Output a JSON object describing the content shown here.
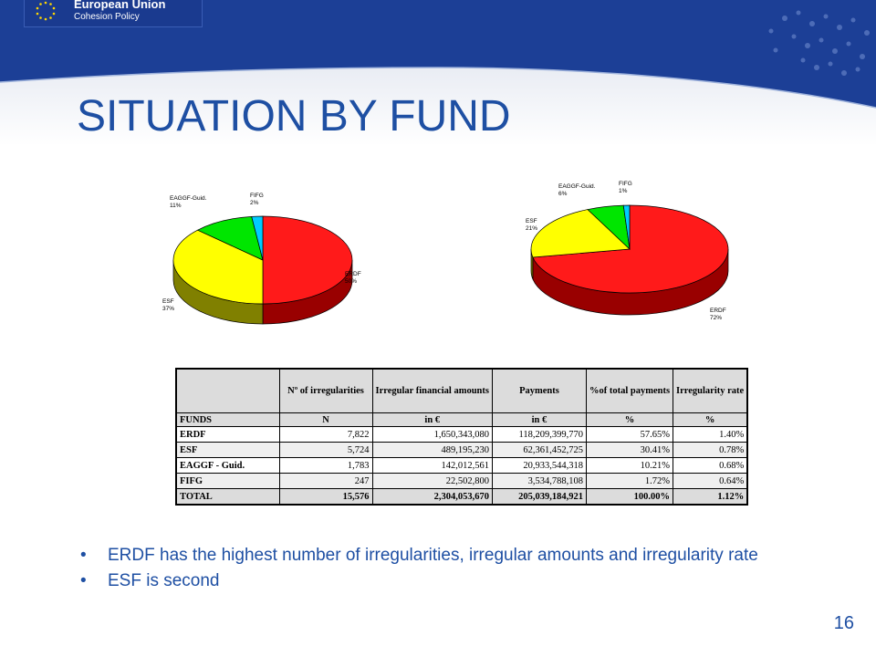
{
  "header": {
    "org": "European Union",
    "program": "Cohesion Policy"
  },
  "slide": {
    "title": "SITUATION BY FUND",
    "page_number": "16"
  },
  "bullets": [
    "ERDF has the highest number of irregularities, irregular amounts and irregularity rate",
    "ESF is second"
  ],
  "table": {
    "headers": [
      "",
      "Nº of irregularities",
      "Irregular financial amounts",
      "Payments",
      "%of total payments",
      "Irregularity rate"
    ],
    "units": [
      "FUNDS",
      "N",
      "in €",
      "in €",
      "%",
      "%"
    ],
    "rows": [
      [
        "ERDF",
        "7,822",
        "1,650,343,080",
        "118,209,399,770",
        "57.65%",
        "1.40%"
      ],
      [
        "ESF",
        "5,724",
        "489,195,230",
        "62,361,452,725",
        "30.41%",
        "0.78%"
      ],
      [
        "EAGGF - Guid.",
        "1,783",
        "142,012,561",
        "20,933,544,318",
        "10.21%",
        "0.68%"
      ],
      [
        "FIFG",
        "247",
        "22,502,800",
        "3,534,788,108",
        "1.72%",
        "0.64%"
      ]
    ],
    "total": [
      "TOTAL",
      "15,576",
      "2,304,053,670",
      "205,039,184,921",
      "100.00%",
      "1.12%"
    ]
  },
  "colors": {
    "title_blue": "#1e4fa3",
    "ERDF": "#ff1a1a",
    "ESF": "#ffff00",
    "EAGGF": "#00e600",
    "FIFG": "#00ccff"
  },
  "chart_data": [
    {
      "type": "pie",
      "categories": [
        "ERDF",
        "ESF",
        "EAGGF - Guid.",
        "FIFG"
      ],
      "labels": [
        "ERDF",
        "ESF",
        "EAGGF-Guid.",
        "FIFG"
      ],
      "label_values": [
        "50%",
        "37%",
        "11%",
        "2%"
      ],
      "values": [
        50,
        37,
        11,
        2
      ],
      "colors": [
        "#ff1a1a",
        "#ffff00",
        "#00e600",
        "#00ccff"
      ],
      "side_colors": [
        "#990000",
        "#808000",
        "#008000",
        "#007a99"
      ]
    },
    {
      "type": "pie",
      "categories": [
        "ERDF",
        "ESF",
        "EAGGF - Guid.",
        "FIFG"
      ],
      "labels": [
        "ERDF",
        "ESF",
        "EAGGF-Guid.",
        "FIFG"
      ],
      "label_values": [
        "72%",
        "21%",
        "6%",
        "1%"
      ],
      "values": [
        72,
        21,
        6,
        1
      ],
      "colors": [
        "#ff1a1a",
        "#ffff00",
        "#00e600",
        "#00ccff"
      ],
      "side_colors": [
        "#990000",
        "#808000",
        "#008000",
        "#007a99"
      ]
    }
  ]
}
